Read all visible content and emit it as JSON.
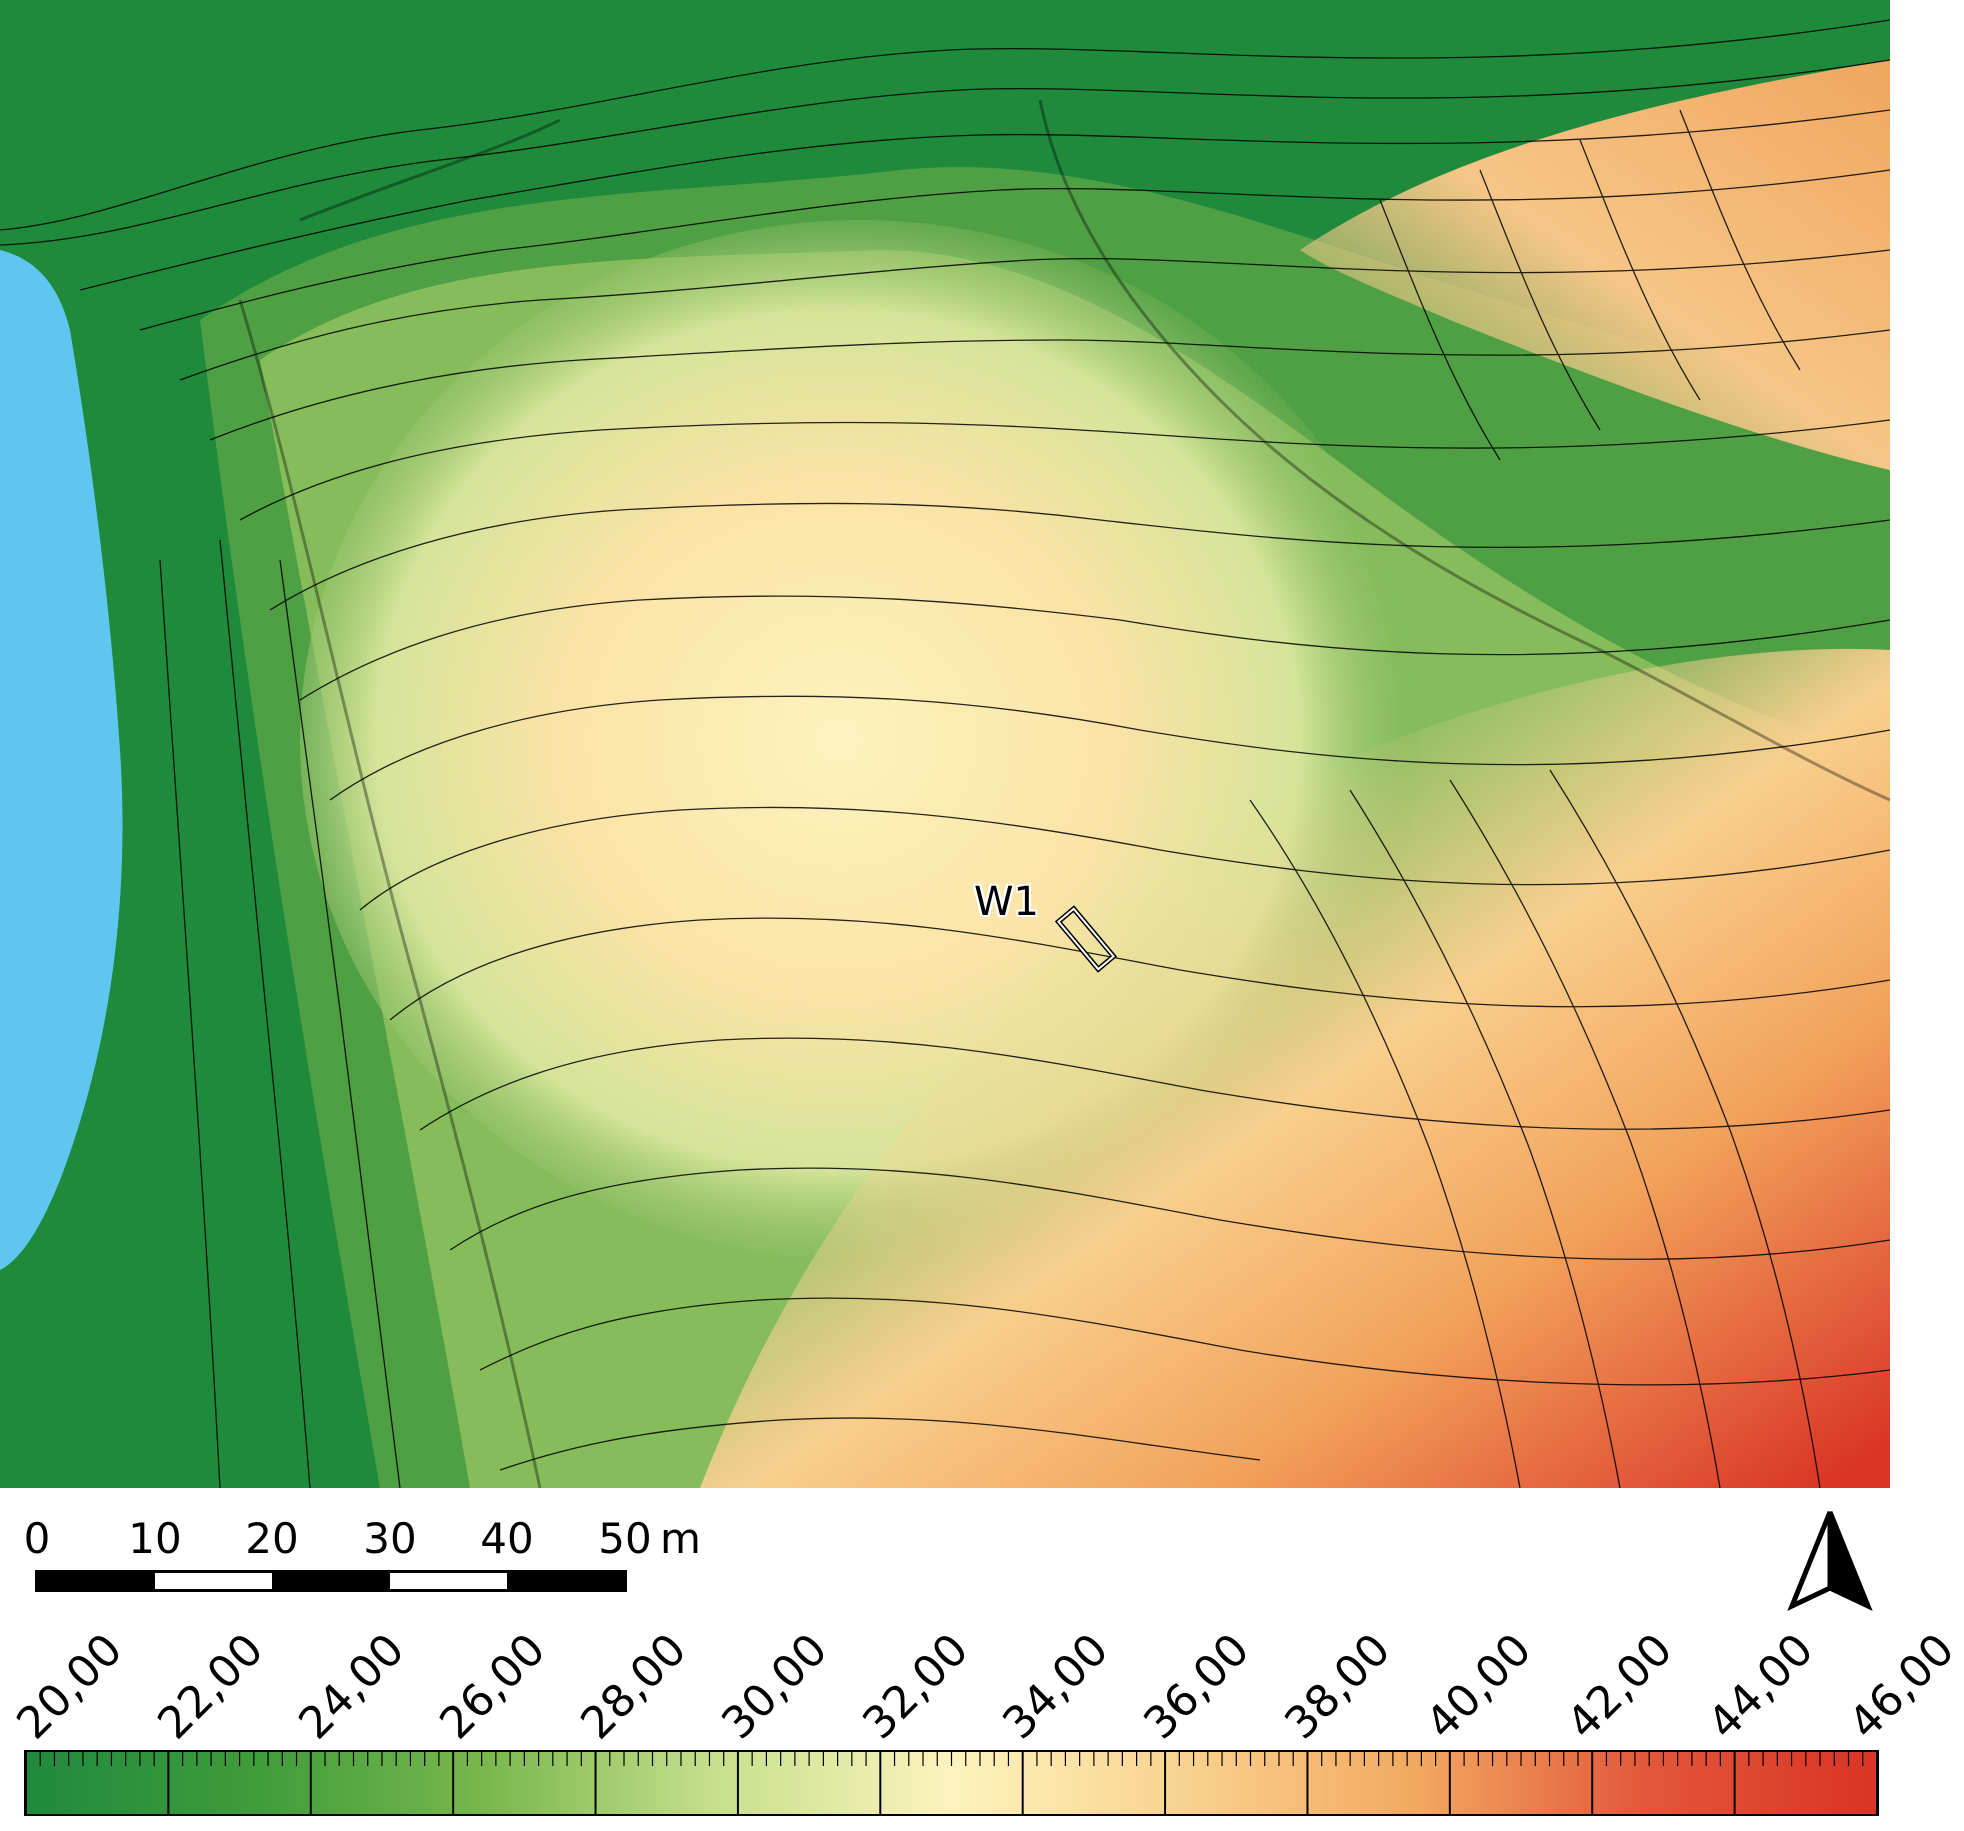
{
  "map": {
    "site_label": "W1",
    "colors": {
      "water": "#5fc6f0",
      "low": "#1f8a3c",
      "mid": "#fdf3bd",
      "high": "#d93425",
      "contour": "#000000"
    }
  },
  "scale_bar": {
    "ticks": [
      "0",
      "10",
      "20",
      "30",
      "40",
      "50"
    ],
    "unit": "m"
  },
  "north_arrow": {
    "icon": "north-arrow-icon"
  },
  "elevation_legend": {
    "labels": [
      "20,00",
      "22,00",
      "24,00",
      "26,00",
      "28,00",
      "30,00",
      "32,00",
      "34,00",
      "36,00",
      "38,00",
      "40,00",
      "42,00",
      "44,00",
      "46,00"
    ],
    "min": 20,
    "max": 46,
    "color_stops": [
      "#1f8a3c",
      "#3f9c3b",
      "#7ab84d",
      "#c8e08e",
      "#fdf3bd",
      "#f9d28f",
      "#f2a961",
      "#e3573a",
      "#d93425"
    ]
  }
}
